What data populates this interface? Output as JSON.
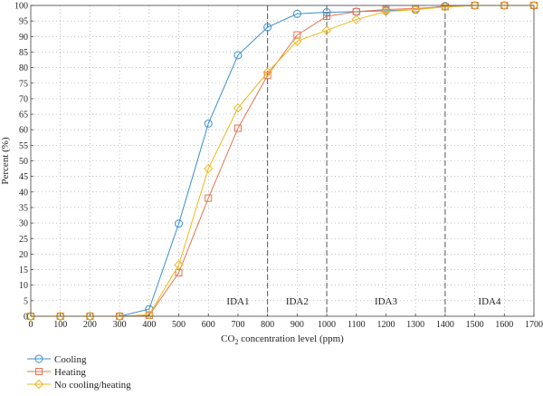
{
  "chart_data": {
    "type": "line",
    "xlabel_main": "CO",
    "xlabel_sub": "2",
    "xlabel_rest": " concentration level (ppm)",
    "ylabel": "Percent (%)",
    "x": [
      0,
      100,
      200,
      300,
      400,
      500,
      600,
      700,
      800,
      900,
      1000,
      1100,
      1200,
      1300,
      1400,
      1500,
      1600,
      1700
    ],
    "xlim": [
      0,
      1700
    ],
    "ylim": [
      0,
      100
    ],
    "xticks": [
      0,
      100,
      200,
      300,
      400,
      500,
      600,
      700,
      800,
      900,
      1000,
      1100,
      1200,
      1300,
      1400,
      1500,
      1600,
      1700
    ],
    "yticks": [
      0,
      5,
      10,
      15,
      20,
      25,
      30,
      35,
      40,
      45,
      50,
      55,
      60,
      65,
      70,
      75,
      80,
      85,
      90,
      95,
      100
    ],
    "grid": true,
    "region_lines": [
      800,
      1000,
      1400
    ],
    "regions": [
      {
        "label": "IDA1",
        "x": 700
      },
      {
        "label": "IDA2",
        "x": 900
      },
      {
        "label": "IDA3",
        "x": 1200
      },
      {
        "label": "IDA4",
        "x": 1550
      }
    ],
    "series": [
      {
        "name": "Cooling",
        "color": "#3a8fd0",
        "marker": "circle",
        "values": [
          0,
          0,
          0,
          0,
          2.3,
          29.8,
          62,
          84,
          93,
          97.3,
          97.8,
          98,
          98.3,
          98.6,
          99.8,
          100,
          100,
          100
        ]
      },
      {
        "name": "Heating",
        "color": "#e8734f",
        "marker": "square",
        "values": [
          0,
          0,
          0,
          0,
          0.3,
          14,
          38,
          60.5,
          77.5,
          90.5,
          96.5,
          98,
          98.7,
          99,
          99.6,
          100,
          100,
          100
        ]
      },
      {
        "name": "No cooling/heating",
        "color": "#f0b81e",
        "marker": "diamond",
        "values": [
          0,
          0,
          0,
          0,
          0.5,
          16.5,
          47.5,
          67,
          78.5,
          88.5,
          92,
          95.5,
          98,
          98.7,
          99.5,
          100,
          100,
          100
        ]
      }
    ]
  }
}
